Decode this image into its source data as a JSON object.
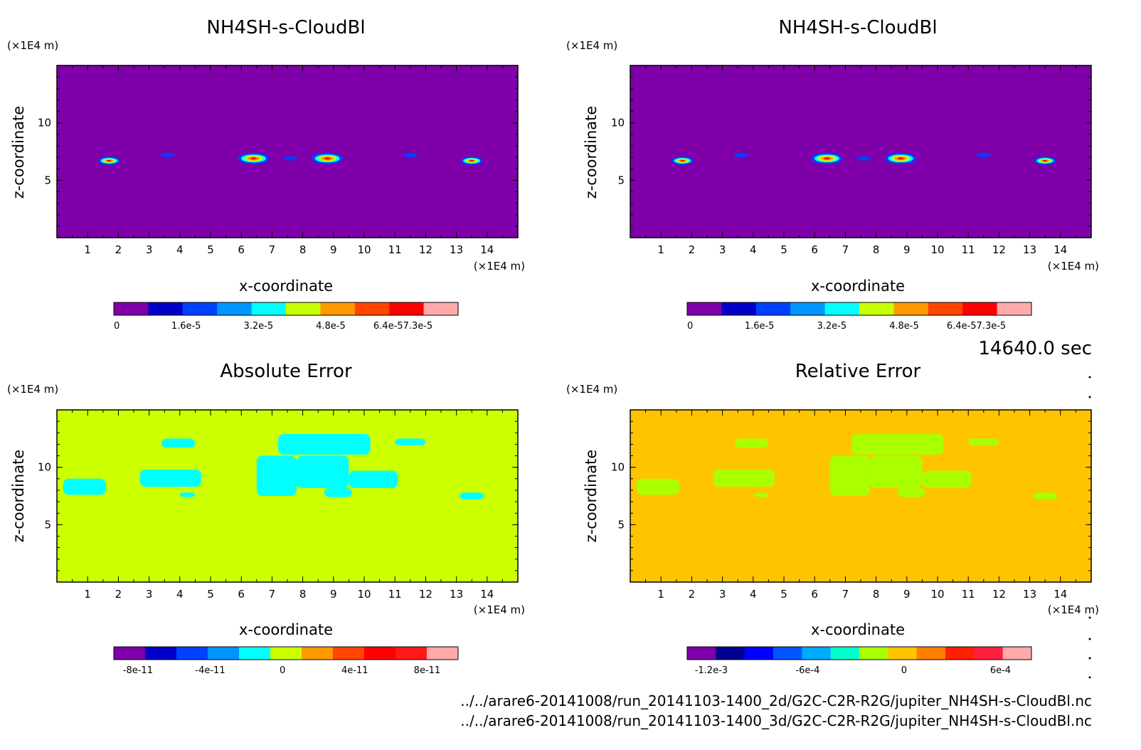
{
  "figure": {
    "time_label": "14640.0 sec",
    "files": [
      "../../arare6-20141008/run_20141103-1400_2d/G2C-C2R-R2G/jupiter_NH4SH-s-CloudBl.nc",
      "../../arare6-20141008/run_20141103-1400_3d/G2C-C2R-R2G/jupiter_NH4SH-s-CloudBl.nc"
    ]
  },
  "chart_data": [
    {
      "type": "heatmap",
      "title": "NH4SH-s-CloudBl",
      "xlabel": "x-coordinate",
      "ylabel": "z-coordinate",
      "x_unit": "(×1E4 m)",
      "y_unit": "(×1E4 m)",
      "xlim": [
        0,
        15
      ],
      "ylim": [
        0,
        15
      ],
      "x_ticks": [
        "1",
        "2",
        "3",
        "4",
        "5",
        "6",
        "7",
        "8",
        "9",
        "10",
        "11",
        "12",
        "13",
        "14"
      ],
      "y_ticks": [
        "5",
        "10"
      ],
      "background_color": "#7f00aa",
      "colorbar": {
        "colors": [
          "#7f00aa",
          "#0000c8",
          "#0040ff",
          "#0095ff",
          "#00ffff",
          "#c8ff00",
          "#ff9900",
          "#ff4500",
          "#ff0000",
          "#ffaaaa"
        ],
        "labels": [
          "0",
          "1.6e-5",
          "3.2e-5",
          "4.8e-5",
          "6.4e-57.3e-5"
        ]
      },
      "cloud_features": [
        {
          "x": 1.7,
          "z": 6.7,
          "peak": "5e-5"
        },
        {
          "x": 3.6,
          "z": 7.2,
          "peak": "1e-5"
        },
        {
          "x": 6.4,
          "z": 6.9,
          "peak": "6.4e-5"
        },
        {
          "x": 7.6,
          "z": 6.9,
          "peak": "1e-5"
        },
        {
          "x": 8.8,
          "z": 6.9,
          "peak": "7.3e-5"
        },
        {
          "x": 11.5,
          "z": 7.2,
          "peak": "1e-5"
        },
        {
          "x": 13.5,
          "z": 6.7,
          "peak": "5e-5"
        }
      ]
    },
    {
      "type": "heatmap",
      "title": "NH4SH-s-CloudBl",
      "xlabel": "x-coordinate",
      "ylabel": "z-coordinate",
      "x_unit": "(×1E4 m)",
      "y_unit": "(×1E4 m)",
      "xlim": [
        0,
        15
      ],
      "ylim": [
        0,
        15
      ],
      "x_ticks": [
        "1",
        "2",
        "3",
        "4",
        "5",
        "6",
        "7",
        "8",
        "9",
        "10",
        "11",
        "12",
        "13",
        "14"
      ],
      "y_ticks": [
        "5",
        "10"
      ],
      "background_color": "#7f00aa",
      "colorbar": {
        "colors": [
          "#7f00aa",
          "#0000c8",
          "#0040ff",
          "#0095ff",
          "#00ffff",
          "#c8ff00",
          "#ff9900",
          "#ff4500",
          "#ff0000",
          "#ffaaaa"
        ],
        "labels": [
          "0",
          "1.6e-5",
          "3.2e-5",
          "4.8e-5",
          "6.4e-57.3e-5"
        ]
      },
      "cloud_features": [
        {
          "x": 1.7,
          "z": 6.7,
          "peak": "5e-5"
        },
        {
          "x": 3.6,
          "z": 7.2,
          "peak": "1e-5"
        },
        {
          "x": 6.4,
          "z": 6.9,
          "peak": "6.4e-5"
        },
        {
          "x": 7.6,
          "z": 6.9,
          "peak": "1e-5"
        },
        {
          "x": 8.8,
          "z": 6.9,
          "peak": "7.3e-5"
        },
        {
          "x": 11.5,
          "z": 7.2,
          "peak": "1e-5"
        },
        {
          "x": 13.5,
          "z": 6.7,
          "peak": "5e-5"
        }
      ]
    },
    {
      "type": "heatmap",
      "title": "Absolute Error",
      "xlabel": "x-coordinate",
      "ylabel": "z-coordinate",
      "x_unit": "(×1E4 m)",
      "y_unit": "(×1E4 m)",
      "xlim": [
        0,
        15
      ],
      "ylim": [
        0,
        15
      ],
      "x_ticks": [
        "1",
        "2",
        "3",
        "4",
        "5",
        "6",
        "7",
        "8",
        "9",
        "10",
        "11",
        "12",
        "13",
        "14"
      ],
      "y_ticks": [
        "5",
        "10"
      ],
      "background_color": "#ccff00",
      "colorbar": {
        "colors": [
          "#7f00aa",
          "#0000c8",
          "#0040ff",
          "#0095ff",
          "#00ffff",
          "#ccff00",
          "#ff9900",
          "#ff4500",
          "#ff0000",
          "#ff1a1a",
          "#ffaaaa"
        ],
        "labels": [
          "-8e-11",
          "-4e-11",
          "0",
          "4e-11",
          "8e-11"
        ]
      },
      "region_color": "#00ffff",
      "regions": [
        {
          "x": 0.2,
          "z": 7.6,
          "w": 1.4,
          "h": 1.4
        },
        {
          "x": 2.7,
          "z": 8.3,
          "w": 2.0,
          "h": 1.5
        },
        {
          "x": 6.5,
          "z": 7.5,
          "w": 1.3,
          "h": 3.5
        },
        {
          "x": 7.2,
          "z": 11.1,
          "w": 3.0,
          "h": 1.8
        },
        {
          "x": 7.8,
          "z": 8.2,
          "w": 1.7,
          "h": 2.8
        },
        {
          "x": 9.5,
          "z": 8.2,
          "w": 1.6,
          "h": 1.5
        },
        {
          "x": 8.7,
          "z": 7.4,
          "w": 0.9,
          "h": 0.8
        },
        {
          "x": 3.4,
          "z": 11.7,
          "w": 1.1,
          "h": 0.8
        },
        {
          "x": 11.0,
          "z": 11.9,
          "w": 1.0,
          "h": 0.6
        },
        {
          "x": 13.1,
          "z": 7.2,
          "w": 0.8,
          "h": 0.6
        },
        {
          "x": 4.0,
          "z": 7.4,
          "w": 0.5,
          "h": 0.4
        }
      ]
    },
    {
      "type": "heatmap",
      "title": "Relative Error",
      "xlabel": "x-coordinate",
      "ylabel": "z-coordinate",
      "x_unit": "(×1E4 m)",
      "y_unit": "(×1E4 m)",
      "xlim": [
        0,
        15
      ],
      "ylim": [
        0,
        15
      ],
      "x_ticks": [
        "1",
        "2",
        "3",
        "4",
        "5",
        "6",
        "7",
        "8",
        "9",
        "10",
        "11",
        "12",
        "13",
        "14"
      ],
      "y_ticks": [
        "5",
        "10"
      ],
      "background_color": "#ffc400",
      "colorbar": {
        "colors": [
          "#7f00aa",
          "#000090",
          "#0000ff",
          "#0055ff",
          "#00aaff",
          "#00ffcc",
          "#aaff00",
          "#ffc400",
          "#ff8000",
          "#ff2000",
          "#ff2040",
          "#ffaaaa"
        ],
        "labels": [
          "-1.2e-3",
          "-6e-4",
          "0",
          "6e-4"
        ]
      },
      "region_color": "#aaff00",
      "regions": [
        {
          "x": 0.2,
          "z": 7.6,
          "w": 1.4,
          "h": 1.4
        },
        {
          "x": 2.7,
          "z": 8.3,
          "w": 2.0,
          "h": 1.5
        },
        {
          "x": 6.5,
          "z": 7.5,
          "w": 1.3,
          "h": 3.5
        },
        {
          "x": 7.2,
          "z": 11.1,
          "w": 3.0,
          "h": 1.8
        },
        {
          "x": 7.8,
          "z": 8.2,
          "w": 1.7,
          "h": 2.8
        },
        {
          "x": 9.5,
          "z": 8.2,
          "w": 1.6,
          "h": 1.5
        },
        {
          "x": 8.7,
          "z": 7.4,
          "w": 0.9,
          "h": 0.8
        },
        {
          "x": 3.4,
          "z": 11.7,
          "w": 1.1,
          "h": 0.8
        },
        {
          "x": 11.0,
          "z": 11.9,
          "w": 1.0,
          "h": 0.6
        },
        {
          "x": 13.1,
          "z": 7.2,
          "w": 0.8,
          "h": 0.6
        },
        {
          "x": 4.0,
          "z": 7.4,
          "w": 0.5,
          "h": 0.4
        }
      ]
    }
  ]
}
